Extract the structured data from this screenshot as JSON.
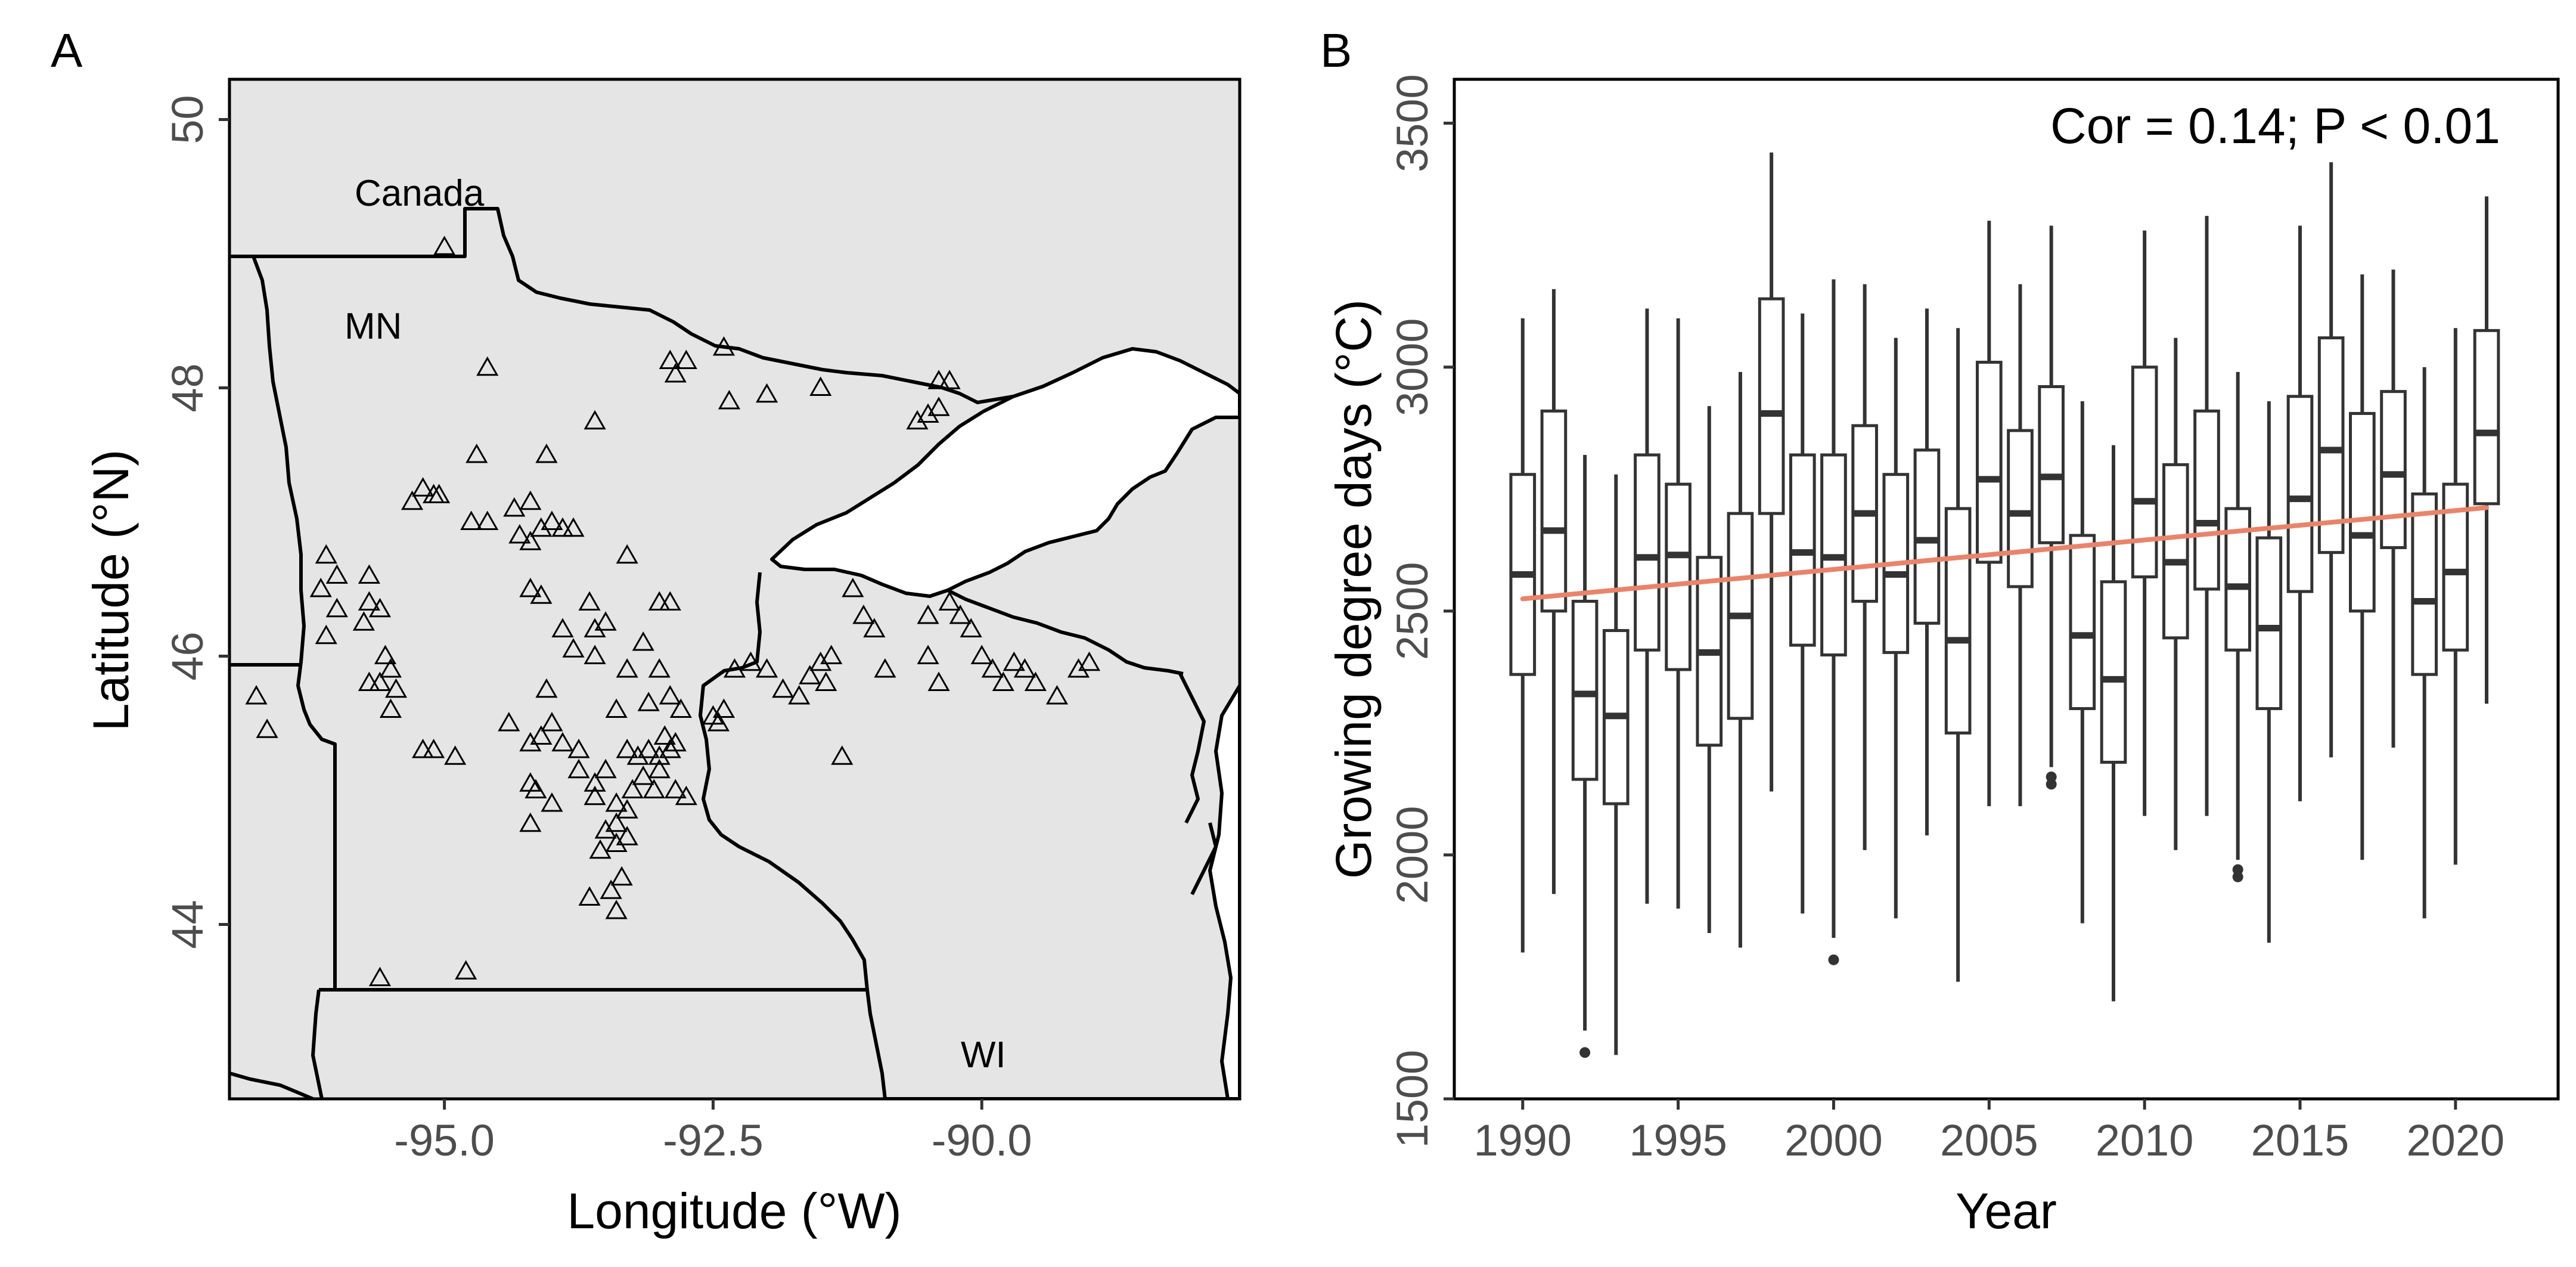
{
  "panels": {
    "a": {
      "label": "A",
      "xlabel": "Longitude (°W)",
      "ylabel": "Latitude (°N)",
      "xticks": [
        {
          "value": -95.0,
          "label": "-95.0"
        },
        {
          "value": -92.5,
          "label": "-92.5"
        },
        {
          "value": -90.0,
          "label": "-90.0"
        }
      ],
      "yticks": [
        {
          "value": 44,
          "label": "44"
        },
        {
          "value": 46,
          "label": "46"
        },
        {
          "value": 48,
          "label": "48"
        },
        {
          "value": 50,
          "label": "50"
        }
      ],
      "region_labels": {
        "canada": "Canada",
        "mn": "MN",
        "wi": "WI"
      }
    },
    "b": {
      "label": "B",
      "xlabel": "Year",
      "ylabel": "Growing degree days (°C)",
      "annotation": "Cor = 0.14; P < 0.01",
      "xticks": [
        {
          "value": 1990,
          "label": "1990"
        },
        {
          "value": 1995,
          "label": "1995"
        },
        {
          "value": 2000,
          "label": "2000"
        },
        {
          "value": 2005,
          "label": "2005"
        },
        {
          "value": 2010,
          "label": "2010"
        },
        {
          "value": 2015,
          "label": "2015"
        },
        {
          "value": 2020,
          "label": "2020"
        }
      ],
      "yticks": [
        {
          "value": 1500,
          "label": "1500"
        },
        {
          "value": 2000,
          "label": "2000"
        },
        {
          "value": 2500,
          "label": "2500"
        },
        {
          "value": 3000,
          "label": "3000"
        },
        {
          "value": 3500,
          "label": "3500"
        }
      ]
    }
  },
  "chart_data": [
    {
      "type": "scatter",
      "panel": "A",
      "marker": "open-triangle",
      "xlabel": "Longitude (°W)",
      "ylabel": "Latitude (°N)",
      "xlim": [
        -97.0,
        -87.6
      ],
      "ylim": [
        42.7,
        50.3
      ],
      "background": "#e5e5e5",
      "region_labels": [
        "Canada",
        "MN",
        "WI"
      ],
      "points": [
        [
          -95.0,
          49.05
        ],
        [
          -94.6,
          48.15
        ],
        [
          -92.9,
          48.2
        ],
        [
          -92.75,
          48.2
        ],
        [
          -92.85,
          48.1
        ],
        [
          -92.4,
          48.3
        ],
        [
          -92.35,
          47.9
        ],
        [
          -92.0,
          47.95
        ],
        [
          -91.5,
          48.0
        ],
        [
          -90.4,
          48.05
        ],
        [
          -90.3,
          48.05
        ],
        [
          -90.4,
          47.85
        ],
        [
          -90.5,
          47.8
        ],
        [
          -90.6,
          47.75
        ],
        [
          -94.7,
          47.5
        ],
        [
          -94.05,
          47.5
        ],
        [
          -93.6,
          47.75
        ],
        [
          -95.1,
          47.2
        ],
        [
          -95.3,
          47.15
        ],
        [
          -95.2,
          47.25
        ],
        [
          -95.05,
          47.2
        ],
        [
          -94.75,
          47.0
        ],
        [
          -94.6,
          47.0
        ],
        [
          -94.35,
          47.1
        ],
        [
          -94.2,
          47.15
        ],
        [
          -94.3,
          46.9
        ],
        [
          -94.1,
          46.95
        ],
        [
          -93.9,
          46.95
        ],
        [
          -93.8,
          46.95
        ],
        [
          -94.0,
          47.0
        ],
        [
          -94.2,
          46.85
        ],
        [
          -93.3,
          46.75
        ],
        [
          -96.1,
          46.75
        ],
        [
          -96.0,
          46.6
        ],
        [
          -96.15,
          46.5
        ],
        [
          -95.7,
          46.6
        ],
        [
          -95.7,
          46.4
        ],
        [
          -95.6,
          46.35
        ],
        [
          -95.75,
          46.25
        ],
        [
          -96.0,
          46.35
        ],
        [
          -96.1,
          46.15
        ],
        [
          -94.2,
          46.5
        ],
        [
          -94.1,
          46.45
        ],
        [
          -93.9,
          46.2
        ],
        [
          -93.65,
          46.4
        ],
        [
          -93.6,
          46.2
        ],
        [
          -93.5,
          46.25
        ],
        [
          -93.8,
          46.05
        ],
        [
          -93.6,
          46.0
        ],
        [
          -93.0,
          46.4
        ],
        [
          -92.9,
          46.4
        ],
        [
          -93.15,
          46.1
        ],
        [
          -93.3,
          45.9
        ],
        [
          -93.0,
          45.9
        ],
        [
          -92.9,
          45.7
        ],
        [
          -92.8,
          45.6
        ],
        [
          -93.4,
          45.6
        ],
        [
          -93.1,
          45.65
        ],
        [
          -95.55,
          46.0
        ],
        [
          -95.5,
          45.9
        ],
        [
          -95.6,
          45.8
        ],
        [
          -95.45,
          45.75
        ],
        [
          -95.7,
          45.8
        ],
        [
          -95.5,
          45.6
        ],
        [
          -94.05,
          45.75
        ],
        [
          -94.0,
          45.5
        ],
        [
          -93.9,
          45.35
        ],
        [
          -94.1,
          45.4
        ],
        [
          -94.4,
          45.5
        ],
        [
          -94.2,
          45.35
        ],
        [
          -93.75,
          45.3
        ],
        [
          -95.2,
          45.3
        ],
        [
          -95.1,
          45.3
        ],
        [
          -94.9,
          45.25
        ],
        [
          -94.2,
          45.05
        ],
        [
          -94.15,
          45.0
        ],
        [
          -94.0,
          44.9
        ],
        [
          -94.2,
          44.75
        ],
        [
          -93.75,
          45.15
        ],
        [
          -93.5,
          45.15
        ],
        [
          -93.6,
          45.05
        ],
        [
          -93.6,
          44.95
        ],
        [
          -93.4,
          44.9
        ],
        [
          -93.3,
          45.3
        ],
        [
          -93.2,
          45.25
        ],
        [
          -93.1,
          45.3
        ],
        [
          -93.0,
          45.25
        ],
        [
          -92.9,
          45.3
        ],
        [
          -92.85,
          45.35
        ],
        [
          -92.95,
          45.4
        ],
        [
          -93.0,
          45.15
        ],
        [
          -93.15,
          45.1
        ],
        [
          -93.05,
          45.0
        ],
        [
          -93.25,
          45.0
        ],
        [
          -93.3,
          44.85
        ],
        [
          -93.4,
          44.75
        ],
        [
          -93.5,
          44.7
        ],
        [
          -93.3,
          44.65
        ],
        [
          -93.4,
          44.6
        ],
        [
          -93.55,
          44.55
        ],
        [
          -93.35,
          44.35
        ],
        [
          -93.45,
          44.25
        ],
        [
          -93.65,
          44.2
        ],
        [
          -93.4,
          44.1
        ],
        [
          -92.85,
          45.0
        ],
        [
          -92.75,
          44.95
        ],
        [
          -92.5,
          45.55
        ],
        [
          -92.45,
          45.5
        ],
        [
          -92.4,
          45.6
        ],
        [
          -92.3,
          45.9
        ],
        [
          -92.15,
          45.95
        ],
        [
          -92.0,
          45.9
        ],
        [
          -91.85,
          45.75
        ],
        [
          -91.7,
          45.7
        ],
        [
          -91.6,
          45.85
        ],
        [
          -91.5,
          45.95
        ],
        [
          -91.45,
          45.8
        ],
        [
          -91.4,
          46.0
        ],
        [
          -91.2,
          46.5
        ],
        [
          -91.1,
          46.3
        ],
        [
          -91.0,
          46.2
        ],
        [
          -90.9,
          45.9
        ],
        [
          -90.5,
          46.3
        ],
        [
          -90.3,
          46.4
        ],
        [
          -90.2,
          46.3
        ],
        [
          -90.1,
          46.2
        ],
        [
          -90.5,
          46.0
        ],
        [
          -90.4,
          45.8
        ],
        [
          -90.0,
          46.0
        ],
        [
          -89.9,
          45.9
        ],
        [
          -89.8,
          45.8
        ],
        [
          -89.7,
          45.95
        ],
        [
          -89.6,
          45.9
        ],
        [
          -89.5,
          45.8
        ],
        [
          -89.3,
          45.7
        ],
        [
          -89.1,
          45.9
        ],
        [
          -89.0,
          45.95
        ],
        [
          -91.3,
          45.25
        ],
        [
          -96.75,
          45.7
        ],
        [
          -96.65,
          45.45
        ],
        [
          -95.6,
          43.6
        ],
        [
          -94.8,
          43.65
        ]
      ]
    },
    {
      "type": "boxplot",
      "panel": "B",
      "xlabel": "Year",
      "ylabel": "Growing degree days (°C)",
      "xlim": [
        1987.8,
        2023.3
      ],
      "ylim": [
        1500,
        3590
      ],
      "annotation": "Cor = 0.14; P < 0.01",
      "fit_line": {
        "type": "linear",
        "color": "#e9846a",
        "x": [
          1990,
          2021
        ],
        "y": [
          2525,
          2712
        ]
      },
      "boxes": [
        {
          "year": 1990,
          "lower_whisker": 1800,
          "q1": 2370,
          "median": 2575,
          "q3": 2780,
          "upper_whisker": 3100,
          "outliers": []
        },
        {
          "year": 1991,
          "lower_whisker": 1920,
          "q1": 2500,
          "median": 2665,
          "q3": 2910,
          "upper_whisker": 3160,
          "outliers": []
        },
        {
          "year": 1992,
          "lower_whisker": 1640,
          "q1": 2155,
          "median": 2330,
          "q3": 2520,
          "upper_whisker": 2820,
          "outliers": [
            1595
          ]
        },
        {
          "year": 1993,
          "lower_whisker": 1590,
          "q1": 2105,
          "median": 2285,
          "q3": 2460,
          "upper_whisker": 2780,
          "outliers": []
        },
        {
          "year": 1994,
          "lower_whisker": 1900,
          "q1": 2420,
          "median": 2610,
          "q3": 2820,
          "upper_whisker": 3120,
          "outliers": []
        },
        {
          "year": 1995,
          "lower_whisker": 1890,
          "q1": 2380,
          "median": 2615,
          "q3": 2760,
          "upper_whisker": 3100,
          "outliers": []
        },
        {
          "year": 1996,
          "lower_whisker": 1840,
          "q1": 2225,
          "median": 2415,
          "q3": 2610,
          "upper_whisker": 2920,
          "outliers": []
        },
        {
          "year": 1997,
          "lower_whisker": 1810,
          "q1": 2280,
          "median": 2490,
          "q3": 2700,
          "upper_whisker": 2990,
          "outliers": []
        },
        {
          "year": 1998,
          "lower_whisker": 2130,
          "q1": 2700,
          "median": 2905,
          "q3": 3140,
          "upper_whisker": 3440,
          "outliers": []
        },
        {
          "year": 1999,
          "lower_whisker": 1880,
          "q1": 2430,
          "median": 2620,
          "q3": 2820,
          "upper_whisker": 3110,
          "outliers": []
        },
        {
          "year": 2000,
          "lower_whisker": 1830,
          "q1": 2410,
          "median": 2610,
          "q3": 2820,
          "upper_whisker": 3180,
          "outliers": [
            1785
          ]
        },
        {
          "year": 2001,
          "lower_whisker": 2010,
          "q1": 2520,
          "median": 2700,
          "q3": 2880,
          "upper_whisker": 3170,
          "outliers": []
        },
        {
          "year": 2002,
          "lower_whisker": 1870,
          "q1": 2415,
          "median": 2575,
          "q3": 2780,
          "upper_whisker": 3060,
          "outliers": []
        },
        {
          "year": 2003,
          "lower_whisker": 2040,
          "q1": 2475,
          "median": 2645,
          "q3": 2830,
          "upper_whisker": 3120,
          "outliers": []
        },
        {
          "year": 2004,
          "lower_whisker": 1740,
          "q1": 2250,
          "median": 2440,
          "q3": 2710,
          "upper_whisker": 3080,
          "outliers": []
        },
        {
          "year": 2005,
          "lower_whisker": 2100,
          "q1": 2600,
          "median": 2770,
          "q3": 3010,
          "upper_whisker": 3300,
          "outliers": []
        },
        {
          "year": 2006,
          "lower_whisker": 2100,
          "q1": 2550,
          "median": 2700,
          "q3": 2870,
          "upper_whisker": 3170,
          "outliers": []
        },
        {
          "year": 2007,
          "lower_whisker": 2180,
          "q1": 2640,
          "median": 2775,
          "q3": 2960,
          "upper_whisker": 3290,
          "outliers": [
            2160,
            2145
          ]
        },
        {
          "year": 2008,
          "lower_whisker": 1860,
          "q1": 2300,
          "median": 2450,
          "q3": 2655,
          "upper_whisker": 2930,
          "outliers": []
        },
        {
          "year": 2009,
          "lower_whisker": 1700,
          "q1": 2190,
          "median": 2360,
          "q3": 2560,
          "upper_whisker": 2840,
          "outliers": []
        },
        {
          "year": 2010,
          "lower_whisker": 2080,
          "q1": 2570,
          "median": 2725,
          "q3": 3000,
          "upper_whisker": 3280,
          "outliers": []
        },
        {
          "year": 2011,
          "lower_whisker": 2010,
          "q1": 2445,
          "median": 2600,
          "q3": 2800,
          "upper_whisker": 3060,
          "outliers": []
        },
        {
          "year": 2012,
          "lower_whisker": 2080,
          "q1": 2545,
          "median": 2680,
          "q3": 2910,
          "upper_whisker": 3310,
          "outliers": []
        },
        {
          "year": 2013,
          "lower_whisker": 1990,
          "q1": 2420,
          "median": 2550,
          "q3": 2710,
          "upper_whisker": 2990,
          "outliers": [
            1970,
            1955
          ]
        },
        {
          "year": 2014,
          "lower_whisker": 1820,
          "q1": 2300,
          "median": 2465,
          "q3": 2650,
          "upper_whisker": 2930,
          "outliers": []
        },
        {
          "year": 2015,
          "lower_whisker": 2110,
          "q1": 2540,
          "median": 2730,
          "q3": 2940,
          "upper_whisker": 3290,
          "outliers": []
        },
        {
          "year": 2016,
          "lower_whisker": 2200,
          "q1": 2620,
          "median": 2830,
          "q3": 3060,
          "upper_whisker": 3420,
          "outliers": []
        },
        {
          "year": 2017,
          "lower_whisker": 1990,
          "q1": 2500,
          "median": 2655,
          "q3": 2905,
          "upper_whisker": 3190,
          "outliers": []
        },
        {
          "year": 2018,
          "lower_whisker": 2220,
          "q1": 2630,
          "median": 2780,
          "q3": 2950,
          "upper_whisker": 3200,
          "outliers": []
        },
        {
          "year": 2019,
          "lower_whisker": 1870,
          "q1": 2370,
          "median": 2520,
          "q3": 2740,
          "upper_whisker": 3000,
          "outliers": []
        },
        {
          "year": 2020,
          "lower_whisker": 1980,
          "q1": 2420,
          "median": 2580,
          "q3": 2760,
          "upper_whisker": 3080,
          "outliers": []
        },
        {
          "year": 2021,
          "lower_whisker": 2310,
          "q1": 2720,
          "median": 2865,
          "q3": 3075,
          "upper_whisker": 3350,
          "outliers": []
        }
      ]
    }
  ]
}
